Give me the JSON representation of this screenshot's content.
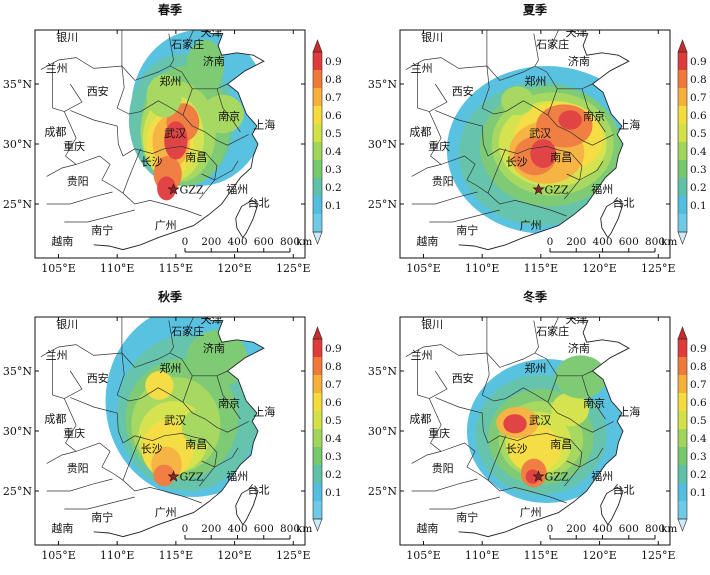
{
  "panels": [
    {
      "title": "春季",
      "season": "spring"
    },
    {
      "title": "夏季",
      "season": "summer"
    },
    {
      "title": "秋季",
      "season": "autumn"
    },
    {
      "title": "冬季",
      "season": "winter"
    }
  ],
  "cities": [
    "天津",
    "银川",
    "石家庄",
    "兰州",
    "济南",
    "郑州",
    "西安",
    "南京",
    "上海",
    "成都",
    "武汉",
    "重庆",
    "南昌",
    "长沙",
    "福州",
    "贵阳",
    "台北",
    "广州",
    "南宁",
    "越南"
  ],
  "station_label": "GZZ",
  "longitude_ticks": [
    "105°E",
    "110°E",
    "115°E",
    "120°E",
    "125°E"
  ],
  "latitude_ticks": [
    "35°N",
    "30°N",
    "25°N"
  ],
  "colorbar": {
    "ticks": [
      "0.9",
      "0.8",
      "0.7",
      "0.6",
      "0.5",
      "0.4",
      "0.3",
      "0.2",
      "0.1"
    ],
    "colors": [
      "#e03a3a",
      "#f0793a",
      "#f6b13a",
      "#f4dc3c",
      "#d2e246",
      "#a2d65a",
      "#78c86e",
      "#5ec1a8",
      "#52bfe0",
      "#6fcae8"
    ]
  },
  "scale_bar": {
    "ticks": [
      "0",
      "200",
      "400",
      "600",
      "800"
    ],
    "unit": "km"
  }
}
